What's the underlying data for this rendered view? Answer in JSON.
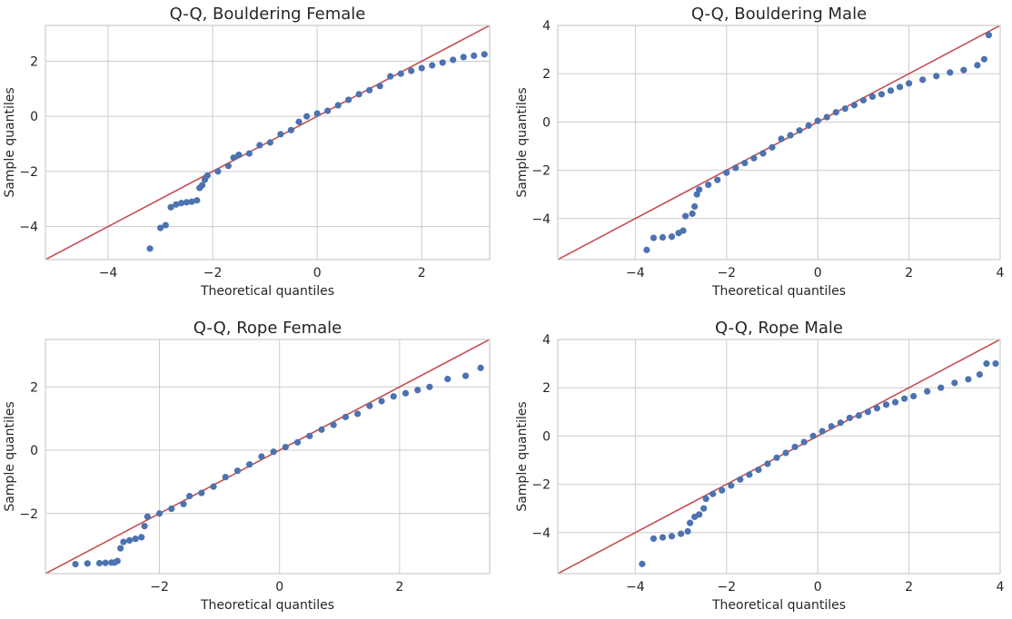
{
  "colors": {
    "points": "#4c72b0",
    "reference_line": "#c44e52",
    "grid": "#cccccc",
    "frame": "#cccccc"
  },
  "chart_data": [
    {
      "type": "scatter",
      "title": "Q-Q, Bouldering Female",
      "xlabel": "Theoretical quantiles",
      "ylabel": "Sample quantiles",
      "xlim": [
        -5.2,
        3.3
      ],
      "ylim": [
        -5.2,
        3.3
      ],
      "xticks": [
        -4,
        -2,
        0,
        2
      ],
      "yticks": [
        -4,
        -2,
        0,
        2
      ],
      "grid": true,
      "reference_line": [
        [
          -5.2,
          -5.2
        ],
        [
          3.3,
          3.3
        ]
      ],
      "points": [
        [
          -3.2,
          -4.8
        ],
        [
          -3.0,
          -4.05
        ],
        [
          -2.9,
          -3.95
        ],
        [
          -2.8,
          -3.3
        ],
        [
          -2.7,
          -3.2
        ],
        [
          -2.6,
          -3.15
        ],
        [
          -2.5,
          -3.12
        ],
        [
          -2.4,
          -3.1
        ],
        [
          -2.3,
          -3.05
        ],
        [
          -2.25,
          -2.6
        ],
        [
          -2.2,
          -2.5
        ],
        [
          -2.15,
          -2.3
        ],
        [
          -2.1,
          -2.15
        ],
        [
          -1.9,
          -2.0
        ],
        [
          -1.7,
          -1.8
        ],
        [
          -1.6,
          -1.5
        ],
        [
          -1.5,
          -1.4
        ],
        [
          -1.3,
          -1.35
        ],
        [
          -1.1,
          -1.05
        ],
        [
          -0.9,
          -0.95
        ],
        [
          -0.7,
          -0.65
        ],
        [
          -0.5,
          -0.5
        ],
        [
          -0.35,
          -0.2
        ],
        [
          -0.2,
          0.0
        ],
        [
          0.0,
          0.1
        ],
        [
          0.2,
          0.2
        ],
        [
          0.4,
          0.4
        ],
        [
          0.6,
          0.6
        ],
        [
          0.8,
          0.8
        ],
        [
          1.0,
          0.95
        ],
        [
          1.2,
          1.1
        ],
        [
          1.4,
          1.45
        ],
        [
          1.6,
          1.55
        ],
        [
          1.8,
          1.65
        ],
        [
          2.0,
          1.75
        ],
        [
          2.2,
          1.85
        ],
        [
          2.4,
          1.95
        ],
        [
          2.6,
          2.05
        ],
        [
          2.8,
          2.15
        ],
        [
          3.0,
          2.2
        ],
        [
          3.2,
          2.25
        ]
      ]
    },
    {
      "type": "scatter",
      "title": "Q-Q, Bouldering Male",
      "xlabel": "Theoretical quantiles",
      "ylabel": "Sample quantiles",
      "xlim": [
        -5.7,
        4.0
      ],
      "ylim": [
        -5.7,
        4.0
      ],
      "xticks": [
        -4,
        -2,
        0,
        2,
        4
      ],
      "yticks": [
        -4,
        -2,
        0,
        2,
        4
      ],
      "grid": true,
      "reference_line": [
        [
          -5.7,
          -5.7
        ],
        [
          4.0,
          4.0
        ]
      ],
      "points": [
        [
          -3.75,
          -5.3
        ],
        [
          -3.6,
          -4.8
        ],
        [
          -3.4,
          -4.78
        ],
        [
          -3.2,
          -4.75
        ],
        [
          -3.05,
          -4.6
        ],
        [
          -2.95,
          -4.5
        ],
        [
          -2.9,
          -3.9
        ],
        [
          -2.75,
          -3.8
        ],
        [
          -2.7,
          -3.5
        ],
        [
          -2.65,
          -3.0
        ],
        [
          -2.6,
          -2.8
        ],
        [
          -2.4,
          -2.6
        ],
        [
          -2.2,
          -2.4
        ],
        [
          -2.0,
          -2.1
        ],
        [
          -1.8,
          -1.9
        ],
        [
          -1.6,
          -1.7
        ],
        [
          -1.4,
          -1.5
        ],
        [
          -1.2,
          -1.3
        ],
        [
          -1.0,
          -1.05
        ],
        [
          -0.8,
          -0.7
        ],
        [
          -0.6,
          -0.55
        ],
        [
          -0.4,
          -0.35
        ],
        [
          -0.2,
          -0.15
        ],
        [
          0.0,
          0.05
        ],
        [
          0.2,
          0.2
        ],
        [
          0.4,
          0.4
        ],
        [
          0.6,
          0.55
        ],
        [
          0.8,
          0.7
        ],
        [
          1.0,
          0.9
        ],
        [
          1.2,
          1.05
        ],
        [
          1.4,
          1.15
        ],
        [
          1.6,
          1.3
        ],
        [
          1.8,
          1.45
        ],
        [
          2.0,
          1.6
        ],
        [
          2.3,
          1.75
        ],
        [
          2.6,
          1.9
        ],
        [
          2.9,
          2.05
        ],
        [
          3.2,
          2.15
        ],
        [
          3.5,
          2.35
        ],
        [
          3.65,
          2.6
        ],
        [
          3.75,
          3.6
        ]
      ]
    },
    {
      "type": "scatter",
      "title": "Q-Q, Rope Female",
      "xlabel": "Theoretical quantiles",
      "ylabel": "Sample quantiles",
      "xlim": [
        -3.9,
        3.5
      ],
      "ylim": [
        -3.9,
        3.5
      ],
      "xticks": [
        -2,
        0,
        2
      ],
      "yticks": [
        -2,
        0,
        2
      ],
      "grid": true,
      "reference_line": [
        [
          -3.9,
          -3.9
        ],
        [
          3.5,
          3.5
        ]
      ],
      "points": [
        [
          -3.4,
          -3.6
        ],
        [
          -3.2,
          -3.58
        ],
        [
          -3.0,
          -3.57
        ],
        [
          -2.9,
          -3.56
        ],
        [
          -2.8,
          -3.55
        ],
        [
          -2.75,
          -3.55
        ],
        [
          -2.7,
          -3.5
        ],
        [
          -2.65,
          -3.1
        ],
        [
          -2.6,
          -2.9
        ],
        [
          -2.5,
          -2.85
        ],
        [
          -2.4,
          -2.8
        ],
        [
          -2.3,
          -2.75
        ],
        [
          -2.25,
          -2.4
        ],
        [
          -2.2,
          -2.1
        ],
        [
          -2.0,
          -2.0
        ],
        [
          -1.8,
          -1.85
        ],
        [
          -1.6,
          -1.7
        ],
        [
          -1.5,
          -1.45
        ],
        [
          -1.3,
          -1.35
        ],
        [
          -1.1,
          -1.15
        ],
        [
          -0.9,
          -0.85
        ],
        [
          -0.7,
          -0.65
        ],
        [
          -0.5,
          -0.45
        ],
        [
          -0.3,
          -0.2
        ],
        [
          -0.1,
          -0.05
        ],
        [
          0.1,
          0.1
        ],
        [
          0.3,
          0.25
        ],
        [
          0.5,
          0.45
        ],
        [
          0.7,
          0.65
        ],
        [
          0.9,
          0.8
        ],
        [
          1.1,
          1.05
        ],
        [
          1.3,
          1.15
        ],
        [
          1.5,
          1.4
        ],
        [
          1.7,
          1.55
        ],
        [
          1.9,
          1.7
        ],
        [
          2.1,
          1.8
        ],
        [
          2.3,
          1.9
        ],
        [
          2.5,
          2.0
        ],
        [
          2.8,
          2.25
        ],
        [
          3.1,
          2.35
        ],
        [
          3.35,
          2.6
        ]
      ]
    },
    {
      "type": "scatter",
      "title": "Q-Q, Rope Male",
      "xlabel": "Theoretical quantiles",
      "ylabel": "Sample quantiles",
      "xlim": [
        -5.7,
        4.0
      ],
      "ylim": [
        -5.7,
        4.0
      ],
      "xticks": [
        -4,
        -2,
        0,
        2,
        4
      ],
      "yticks": [
        -4,
        -2,
        0,
        2,
        4
      ],
      "grid": true,
      "reference_line": [
        [
          -5.7,
          -5.7
        ],
        [
          4.0,
          4.0
        ]
      ],
      "points": [
        [
          -3.85,
          -5.3
        ],
        [
          -3.6,
          -4.25
        ],
        [
          -3.4,
          -4.2
        ],
        [
          -3.2,
          -4.15
        ],
        [
          -3.0,
          -4.05
        ],
        [
          -2.85,
          -3.95
        ],
        [
          -2.8,
          -3.6
        ],
        [
          -2.7,
          -3.35
        ],
        [
          -2.6,
          -3.25
        ],
        [
          -2.5,
          -3.0
        ],
        [
          -2.45,
          -2.6
        ],
        [
          -2.3,
          -2.4
        ],
        [
          -2.1,
          -2.25
        ],
        [
          -1.9,
          -2.05
        ],
        [
          -1.7,
          -1.8
        ],
        [
          -1.5,
          -1.6
        ],
        [
          -1.3,
          -1.4
        ],
        [
          -1.1,
          -1.15
        ],
        [
          -0.9,
          -0.9
        ],
        [
          -0.7,
          -0.7
        ],
        [
          -0.5,
          -0.45
        ],
        [
          -0.3,
          -0.25
        ],
        [
          -0.1,
          0.0
        ],
        [
          0.1,
          0.2
        ],
        [
          0.3,
          0.4
        ],
        [
          0.5,
          0.55
        ],
        [
          0.7,
          0.75
        ],
        [
          0.9,
          0.85
        ],
        [
          1.1,
          1.0
        ],
        [
          1.3,
          1.15
        ],
        [
          1.5,
          1.3
        ],
        [
          1.7,
          1.4
        ],
        [
          1.9,
          1.55
        ],
        [
          2.1,
          1.65
        ],
        [
          2.4,
          1.85
        ],
        [
          2.7,
          2.0
        ],
        [
          3.0,
          2.2
        ],
        [
          3.3,
          2.35
        ],
        [
          3.55,
          2.55
        ],
        [
          3.7,
          3.0
        ],
        [
          3.9,
          3.0
        ]
      ]
    }
  ]
}
